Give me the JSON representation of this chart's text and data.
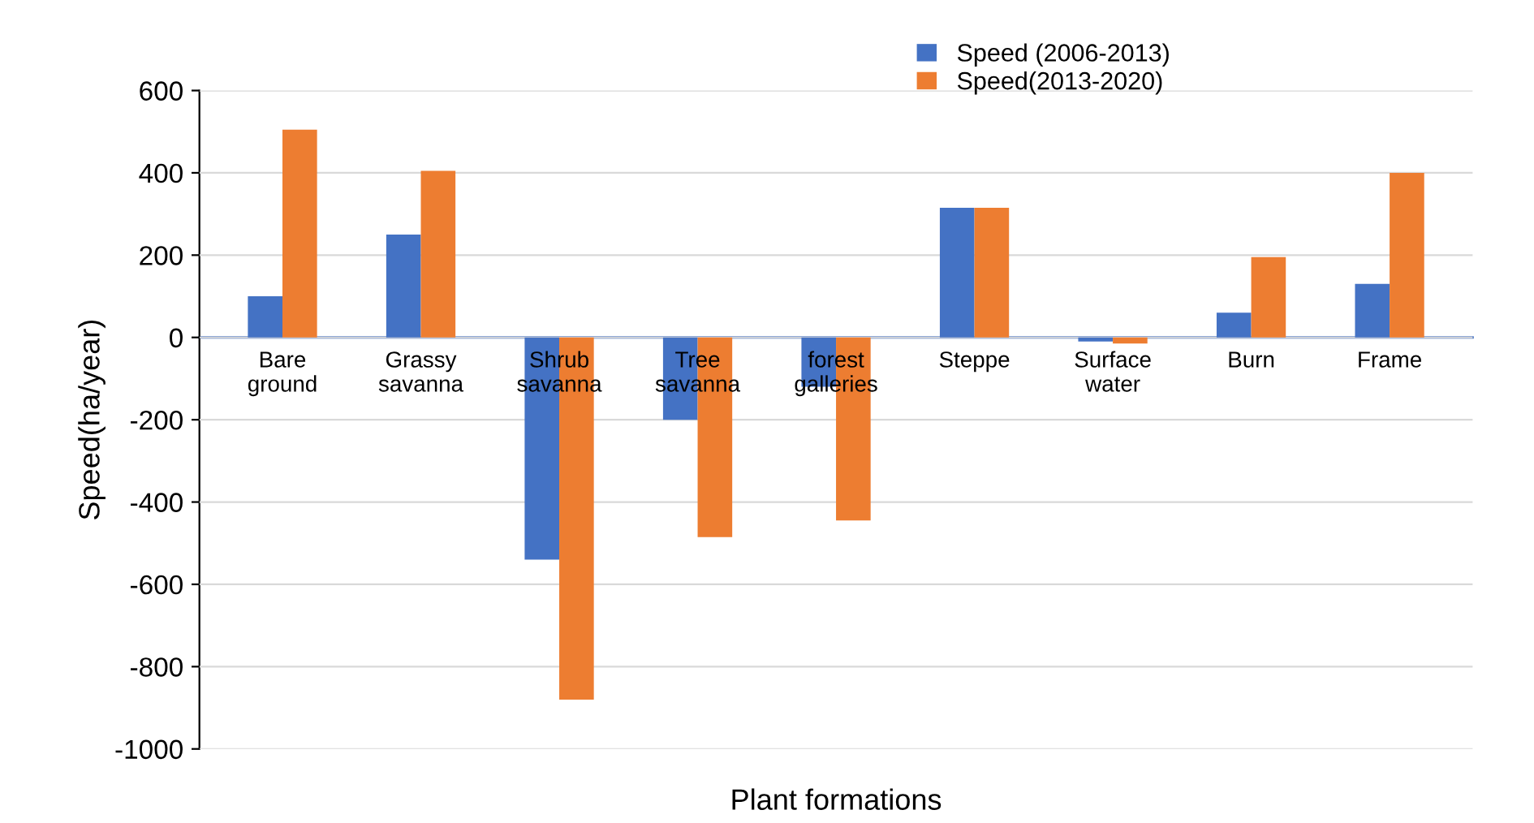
{
  "chart_data": {
    "type": "bar",
    "xlabel": "Plant formations",
    "ylabel": "Speed(ha/year)",
    "categories": [
      "Bare ground",
      "Grassy savanna",
      "Shrub savanna",
      "Tree savanna",
      "forest galleries",
      "Steppe",
      "Surface water",
      "Burn",
      "Frame"
    ],
    "series": [
      {
        "name": "Speed (2006-2013)",
        "color": "#4472c4",
        "values": [
          100,
          250,
          -540,
          -200,
          -120,
          315,
          -10,
          60,
          130
        ]
      },
      {
        "name": "Speed(2013-2020)",
        "color": "#ed7d31",
        "values": [
          505,
          405,
          -880,
          -485,
          -445,
          315,
          -15,
          195,
          400
        ]
      }
    ],
    "ylim": [
      -1000,
      600
    ],
    "yticks": [
      -1000,
      -800,
      -600,
      -400,
      -200,
      0,
      200,
      400,
      600
    ],
    "grid": "y",
    "legend": "top right"
  }
}
